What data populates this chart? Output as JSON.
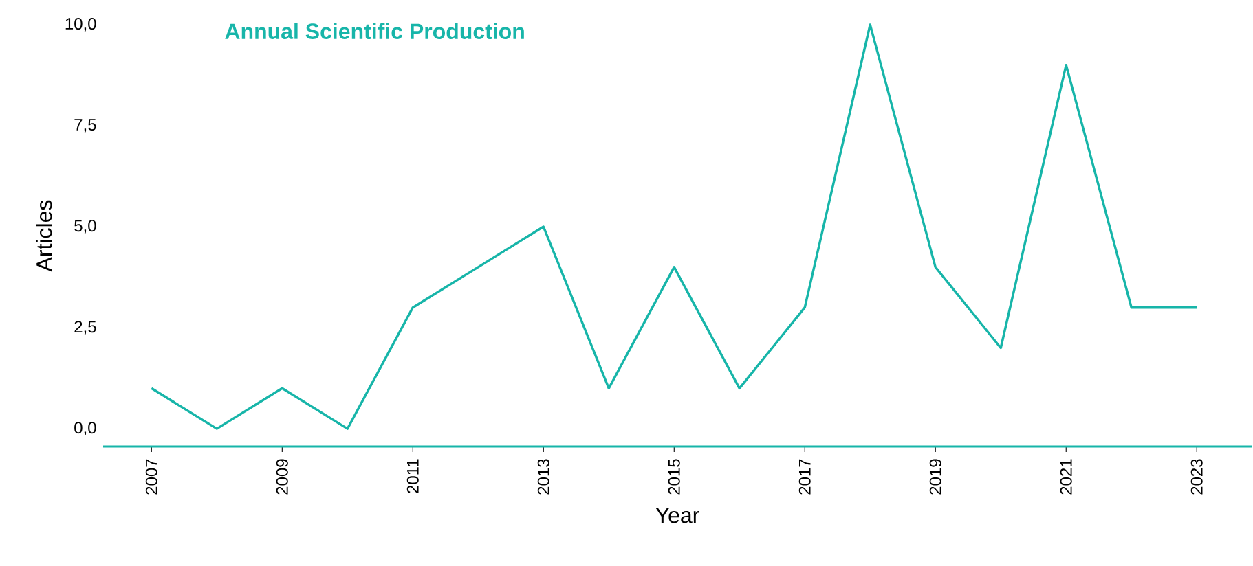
{
  "chart_data": {
    "type": "line",
    "title": "Annual Scientific Production",
    "xlabel": "Year",
    "ylabel": "Articles",
    "x": [
      2007,
      2008,
      2009,
      2010,
      2011,
      2012,
      2013,
      2014,
      2015,
      2016,
      2017,
      2018,
      2019,
      2020,
      2021,
      2022,
      2023
    ],
    "series": [
      {
        "color": "#17b5a9",
        "values": [
          1,
          0,
          1,
          0,
          3,
          4,
          5,
          1,
          4,
          1,
          3,
          10,
          4,
          2,
          9,
          3,
          3
        ]
      }
    ],
    "xlim": [
      2006.26,
      2023.84
    ],
    "xticks": [
      2007,
      2009,
      2011,
      2013,
      2015,
      2017,
      2019,
      2021,
      2023
    ],
    "ylim": [
      -0.44,
      10
    ],
    "yticks": [
      {
        "value": 0,
        "label": "0,0"
      },
      {
        "value": 2.5,
        "label": "2,5"
      },
      {
        "value": 5,
        "label": "5,0"
      },
      {
        "value": 7.5,
        "label": "7,5"
      },
      {
        "value": 10,
        "label": "10,0"
      }
    ],
    "grid": false,
    "marker": "none",
    "line_style": "solid"
  }
}
